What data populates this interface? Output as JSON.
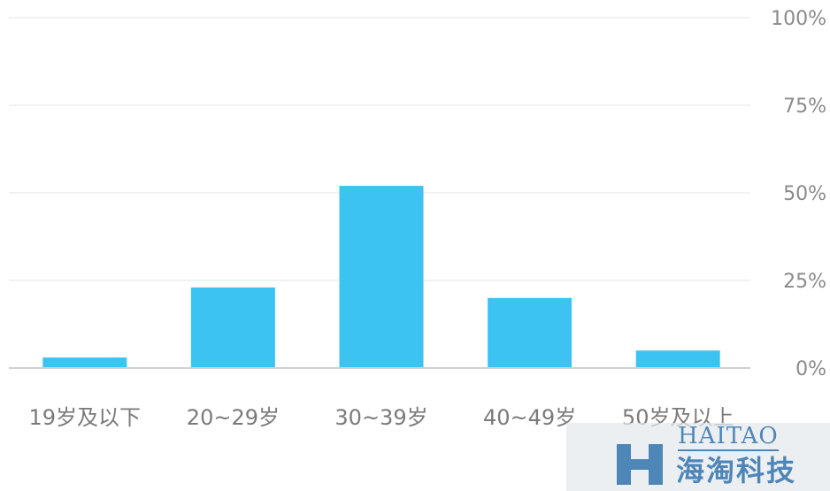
{
  "chart_data": {
    "type": "bar",
    "categories": [
      "19岁及以下",
      "20~29岁",
      "30~39岁",
      "40~49岁",
      "50岁及以上"
    ],
    "values": [
      3,
      23,
      52,
      20,
      5
    ],
    "ylim": [
      0,
      100
    ],
    "yticks": [
      "0%",
      "25%",
      "50%",
      "75%",
      "100%"
    ],
    "ytick_values": [
      0,
      25,
      50,
      75,
      100
    ],
    "y_axis_position": "right",
    "grid": true,
    "bar_color": "#3dc3f2",
    "grid_color": "#eeeeee",
    "axis_color": "#d0d0d0"
  },
  "watermark": {
    "latin": "HAITAO",
    "chinese": "海淘科技",
    "color": "#4f86b8"
  }
}
